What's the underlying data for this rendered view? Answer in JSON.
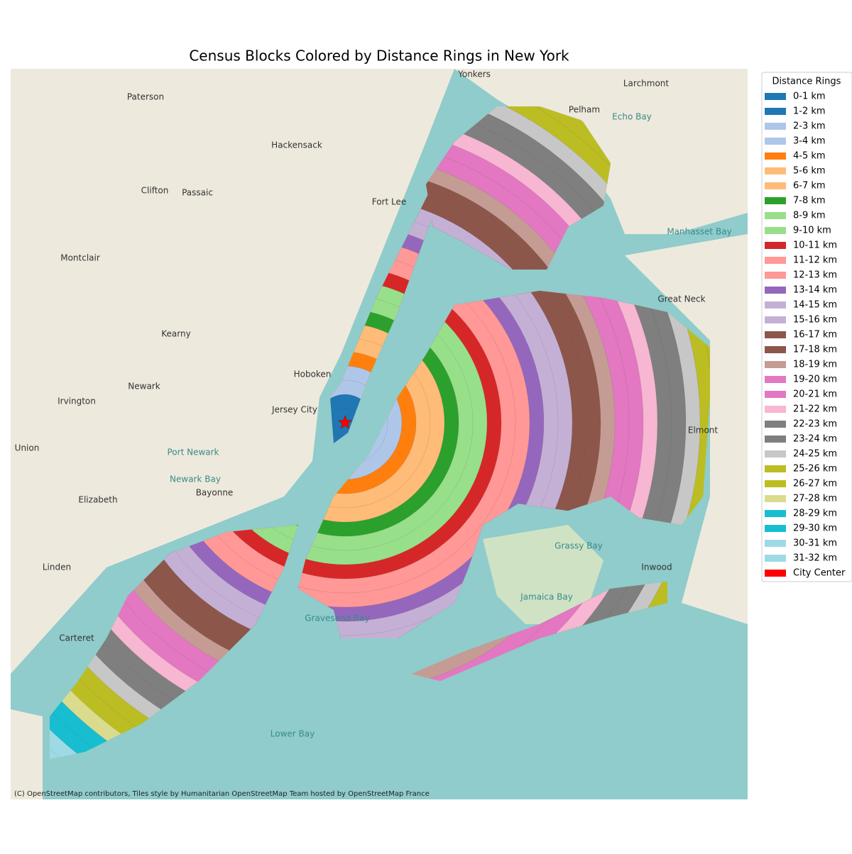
{
  "title": "Census Blocks Colored by Distance Rings in New York",
  "legend": {
    "title": "Distance Rings",
    "items": [
      {
        "label": "0-1 km",
        "color": "#1f77b4"
      },
      {
        "label": "1-2 km",
        "color": "#1f77b4"
      },
      {
        "label": "2-3 km",
        "color": "#aec7e8"
      },
      {
        "label": "3-4 km",
        "color": "#aec7e8"
      },
      {
        "label": "4-5 km",
        "color": "#ff7f0e"
      },
      {
        "label": "5-6 km",
        "color": "#ffbb78"
      },
      {
        "label": "6-7 km",
        "color": "#ffbb78"
      },
      {
        "label": "7-8 km",
        "color": "#2ca02c"
      },
      {
        "label": "8-9 km",
        "color": "#98df8a"
      },
      {
        "label": "9-10 km",
        "color": "#98df8a"
      },
      {
        "label": "10-11 km",
        "color": "#d62728"
      },
      {
        "label": "11-12 km",
        "color": "#ff9896"
      },
      {
        "label": "12-13 km",
        "color": "#ff9896"
      },
      {
        "label": "13-14 km",
        "color": "#9467bd"
      },
      {
        "label": "14-15 km",
        "color": "#c5b0d5"
      },
      {
        "label": "15-16 km",
        "color": "#c5b0d5"
      },
      {
        "label": "16-17 km",
        "color": "#8c564b"
      },
      {
        "label": "17-18 km",
        "color": "#8c564b"
      },
      {
        "label": "18-19 km",
        "color": "#c49c94"
      },
      {
        "label": "19-20 km",
        "color": "#e377c2"
      },
      {
        "label": "20-21 km",
        "color": "#e377c2"
      },
      {
        "label": "21-22 km",
        "color": "#f7b6d2"
      },
      {
        "label": "22-23 km",
        "color": "#7f7f7f"
      },
      {
        "label": "23-24 km",
        "color": "#7f7f7f"
      },
      {
        "label": "24-25 km",
        "color": "#c7c7c7"
      },
      {
        "label": "25-26 km",
        "color": "#bcbd22"
      },
      {
        "label": "26-27 km",
        "color": "#bcbd22"
      },
      {
        "label": "27-28 km",
        "color": "#dbdb8d"
      },
      {
        "label": "28-29 km",
        "color": "#17becf"
      },
      {
        "label": "29-30 km",
        "color": "#17becf"
      },
      {
        "label": "30-31 km",
        "color": "#9edae5"
      },
      {
        "label": "31-32 km",
        "color": "#9edae5"
      },
      {
        "label": "City Center",
        "color": "#ff0000"
      }
    ]
  },
  "map_labels": [
    "Yonkers",
    "Paterson",
    "Newark",
    "Jersey City",
    "Elizabeth",
    "Hoboken",
    "Kearny",
    "Bayonne",
    "Linden",
    "Carteret",
    "Pelham",
    "Great Neck",
    "Lower Bay",
    "Gravesend Bay",
    "Jamaica Bay",
    "Grassy Bay",
    "Manhasset Bay",
    "Fort Lee",
    "Union",
    "Irvington",
    "Elmont",
    "Inwood",
    "Hackensack",
    "Clifton",
    "Passaic",
    "Montclair",
    "Port Newark",
    "Newark Bay",
    "Larchmont",
    "Echo Bay"
  ],
  "attribution": "(C) OpenStreetMap contributors, Tiles style by Humanitarian OpenStreetMap Team hosted by OpenStreetMap France"
}
